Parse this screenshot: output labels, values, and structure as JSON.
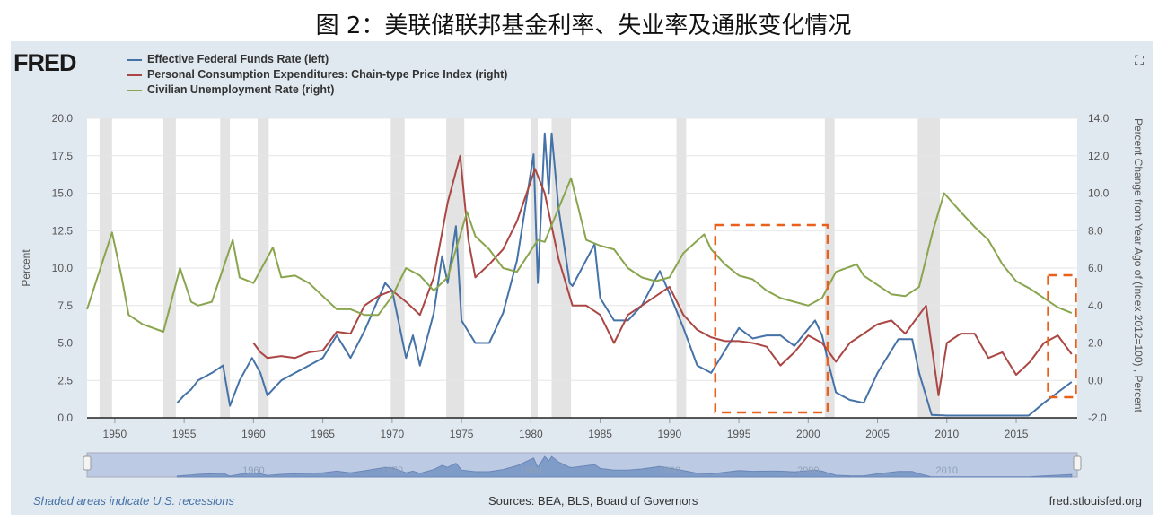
{
  "page_title": "图 2：美联储联邦基金利率、失业率及通胀变化情况",
  "logo": "FRED",
  "footer": {
    "note": "Shaded areas indicate U.S. recessions",
    "sources": "Sources: BEA, BLS, Board of Governors",
    "site": "fred.stlouisfed.org"
  },
  "chart_data": {
    "type": "line",
    "title": "图 2：美联储联邦基金利率、失业率及通胀变化情况",
    "ylabel": "Percent",
    "y2label": "Percent Change from Year Ago of (Index 2012=100) , Percent",
    "xlim": [
      1948,
      2019.4
    ],
    "ylim": [
      0,
      20
    ],
    "y2lim": [
      -2,
      14
    ],
    "xticks": [
      "1950",
      "1955",
      "1960",
      "1965",
      "1970",
      "1975",
      "1980",
      "1985",
      "1990",
      "1995",
      "2000",
      "2005",
      "2010",
      "2015"
    ],
    "yticks": [
      "0.0",
      "2.5",
      "5.0",
      "7.5",
      "10.0",
      "12.5",
      "15.0",
      "17.5",
      "20.0"
    ],
    "y2ticks": [
      "-2.0",
      "0.0",
      "2.0",
      "4.0",
      "6.0",
      "8.0",
      "10.0",
      "12.0",
      "14.0"
    ],
    "navigator_ticks": [
      "1960",
      "1970",
      "1980",
      "1990",
      "2000",
      "2010"
    ],
    "grid": true,
    "legend_position": "top-left",
    "recessions": [
      [
        1948.9,
        1949.8
      ],
      [
        1953.5,
        1954.4
      ],
      [
        1957.6,
        1958.3
      ],
      [
        1960.3,
        1961.1
      ],
      [
        1969.9,
        1970.9
      ],
      [
        1973.9,
        1975.2
      ],
      [
        1980.0,
        1980.5
      ],
      [
        1981.5,
        1982.9
      ],
      [
        1990.5,
        1991.2
      ],
      [
        2001.2,
        2001.9
      ],
      [
        2007.9,
        2009.5
      ]
    ],
    "highlight_boxes": [
      [
        1993.3,
        2001.4
      ],
      [
        2017.3,
        2019.3
      ]
    ],
    "series": [
      {
        "name": "Effective Federal Funds Rate (left)",
        "axis": "left",
        "color": "#4572a7",
        "x": [
          1954.5,
          1955,
          1955.5,
          1956,
          1957,
          1957.8,
          1958.3,
          1959,
          1959.9,
          1960.5,
          1961,
          1962,
          1963,
          1964,
          1965,
          1966,
          1967,
          1968,
          1969.5,
          1970,
          1971,
          1971.5,
          1972,
          1973,
          1973.6,
          1974,
          1974.6,
          1975,
          1976,
          1977,
          1978,
          1979,
          1980.2,
          1980.5,
          1981,
          1981.3,
          1981.5,
          1982,
          1982.8,
          1983,
          1984.6,
          1985,
          1986,
          1987,
          1988,
          1989.3,
          1990,
          1991,
          1992,
          1993,
          1994,
          1995,
          1996,
          1997,
          1998,
          1999,
          2000.5,
          2001,
          2001.5,
          2002,
          2003,
          2004,
          2005,
          2006.5,
          2007.5,
          2008,
          2008.9,
          2010,
          2015.9,
          2017,
          2018,
          2019
        ],
        "y": [
          1,
          1.5,
          1.9,
          2.5,
          3,
          3.5,
          0.8,
          2.5,
          4,
          3,
          1.5,
          2.5,
          3,
          3.5,
          4,
          5.5,
          4,
          5.8,
          9,
          8.5,
          4,
          5.5,
          3.5,
          7,
          10.8,
          9,
          12.8,
          6.5,
          5,
          5,
          7,
          10.5,
          17.6,
          9,
          19,
          15,
          19,
          14,
          9,
          8.8,
          11.6,
          8,
          6.5,
          6.5,
          7.5,
          9.8,
          8.3,
          6,
          3.5,
          3,
          4.5,
          6,
          5.3,
          5.5,
          5.5,
          4.8,
          6.5,
          5.5,
          3.5,
          1.7,
          1.2,
          1,
          3,
          5.25,
          5.25,
          3,
          0.2,
          0.15,
          0.15,
          1,
          1.7,
          2.4
        ]
      },
      {
        "name": "Personal Consumption Expenditures: Chain-type Price Index (right)",
        "axis": "right",
        "color": "#aa4643",
        "x": [
          1960,
          1960.5,
          1961,
          1962,
          1963,
          1964,
          1965,
          1966,
          1967,
          1968,
          1969,
          1970,
          1971,
          1972,
          1973,
          1974,
          1974.9,
          1975.5,
          1976,
          1977,
          1978,
          1979,
          1980.3,
          1981,
          1982,
          1983,
          1984,
          1985,
          1986,
          1987,
          1988,
          1989,
          1990,
          1991,
          1992,
          1993,
          1994,
          1995,
          1996,
          1997,
          1998,
          1999,
          2000,
          2001,
          2002,
          2003,
          2004,
          2005,
          2006,
          2007,
          2008.5,
          2009.4,
          2010,
          2011,
          2012,
          2013,
          2014,
          2015,
          2016,
          2017,
          2018,
          2019
        ],
        "y": [
          2,
          1.5,
          1.2,
          1.3,
          1.2,
          1.5,
          1.6,
          2.6,
          2.5,
          4,
          4.5,
          4.8,
          4.2,
          3.5,
          5.5,
          9.5,
          12,
          7.5,
          5.5,
          6.2,
          7,
          8.5,
          11.3,
          10,
          6.5,
          4,
          4,
          3.5,
          2,
          3.5,
          4,
          4.5,
          5,
          3.5,
          2.7,
          2.3,
          2.1,
          2.1,
          2,
          1.8,
          0.8,
          1.5,
          2.4,
          2,
          1,
          2,
          2.5,
          3,
          3.2,
          2.5,
          4,
          -0.8,
          2,
          2.5,
          2.5,
          1.2,
          1.5,
          0.3,
          1,
          2,
          2.4,
          1.4
        ]
      },
      {
        "name": "Civilian Unemployment Rate (right)",
        "axis": "right",
        "color": "#89a54e",
        "x": [
          1948,
          1949.8,
          1950.5,
          1951,
          1952,
          1953.5,
          1954.7,
          1955.5,
          1956,
          1957,
          1958.5,
          1959,
          1960,
          1961.4,
          1962,
          1963,
          1964,
          1965,
          1966,
          1967,
          1968,
          1969,
          1970,
          1971,
          1972,
          1973,
          1974,
          1975.4,
          1976,
          1977,
          1978,
          1979,
          1980.5,
          1981,
          1982.9,
          1984,
          1985,
          1986,
          1987,
          1988,
          1989,
          1990,
          1991,
          1992.5,
          1993,
          1994,
          1995,
          1996,
          1997,
          1998,
          1999,
          2000,
          2001,
          2002,
          2003.5,
          2004,
          2005,
          2006,
          2007,
          2008,
          2009,
          2009.8,
          2011,
          2012,
          2013,
          2014,
          2015,
          2016,
          2017,
          2018,
          2019
        ],
        "y": [
          3.8,
          7.9,
          5.5,
          3.5,
          3,
          2.6,
          6,
          4.2,
          4,
          4.2,
          7.5,
          5.5,
          5.2,
          7.1,
          5.5,
          5.6,
          5.2,
          4.5,
          3.8,
          3.8,
          3.5,
          3.5,
          4.5,
          6,
          5.6,
          4.8,
          5.5,
          9,
          7.7,
          7,
          6,
          5.8,
          7.5,
          7.4,
          10.8,
          7.5,
          7.2,
          7,
          6,
          5.5,
          5.3,
          5.5,
          6.8,
          7.8,
          7,
          6.2,
          5.6,
          5.4,
          4.8,
          4.4,
          4.2,
          4,
          4.4,
          5.8,
          6.2,
          5.6,
          5.1,
          4.6,
          4.5,
          5,
          8,
          10,
          9,
          8.2,
          7.5,
          6.2,
          5.3,
          4.9,
          4.4,
          3.9,
          3.6
        ]
      }
    ]
  }
}
